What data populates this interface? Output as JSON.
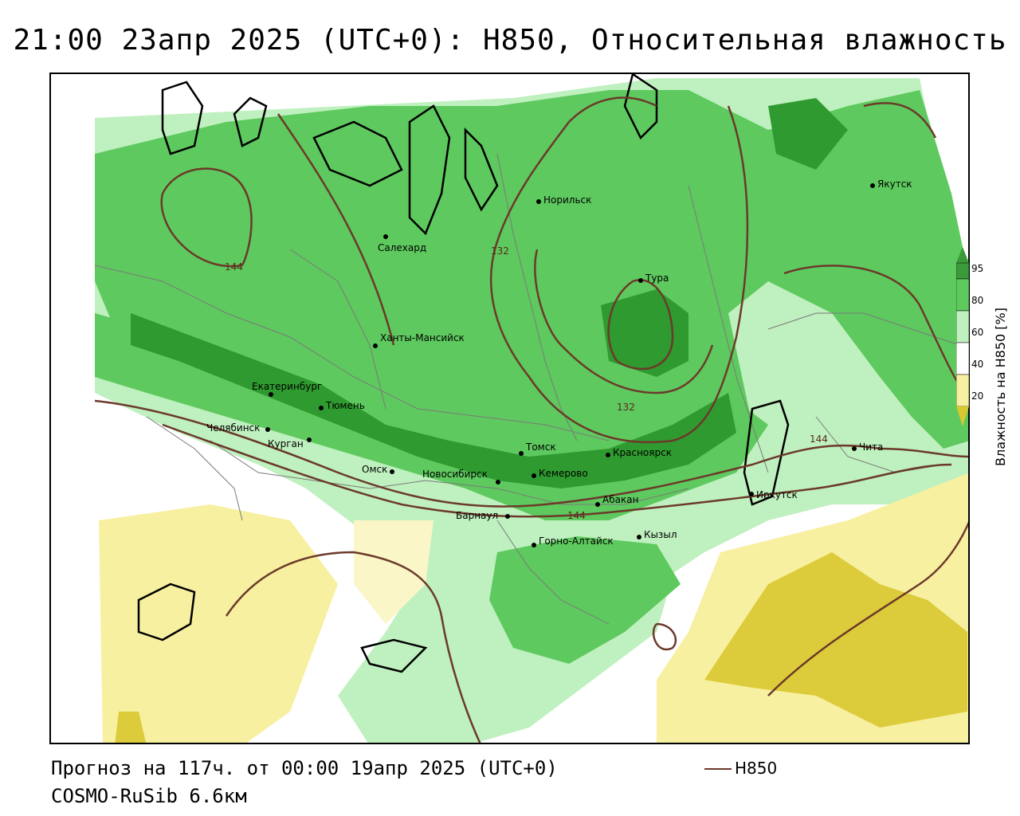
{
  "title": "21:00 23апр 2025 (UTC+0): H850, Относительная влажность",
  "footer": {
    "forecast": "Прогноз на 117ч. от 00:00 19апр 2025 (UTC+0)",
    "model": "COSMO-RuSib 6.6км",
    "legend_label": "H850"
  },
  "colorbar": {
    "title": "Влажность на H850 [%]",
    "ticks": [
      "95",
      "80",
      "60",
      "40",
      "20"
    ],
    "colors": [
      "#3a9a3a",
      "#5ec95e",
      "#bff0bf",
      "#ffffff",
      "#f7f0a0",
      "#d8c830"
    ]
  },
  "contour_labels": [
    "144",
    "132",
    "132",
    "144",
    "144"
  ],
  "cities": [
    {
      "name": "Норильск"
    },
    {
      "name": "Якутск"
    },
    {
      "name": "Салехард"
    },
    {
      "name": "Тура"
    },
    {
      "name": "Ханты-Мансийск"
    },
    {
      "name": "Екатеринбург"
    },
    {
      "name": "Тюмень"
    },
    {
      "name": "Челябинск"
    },
    {
      "name": "Курган"
    },
    {
      "name": "Омск"
    },
    {
      "name": "Новосибирск"
    },
    {
      "name": "Томск"
    },
    {
      "name": "Кемерово"
    },
    {
      "name": "Красноярск"
    },
    {
      "name": "Барнаул"
    },
    {
      "name": "Абакан"
    },
    {
      "name": "Горно-Алтайск"
    },
    {
      "name": "Кызыл"
    },
    {
      "name": "Иркутск"
    },
    {
      "name": "Чита"
    }
  ]
}
